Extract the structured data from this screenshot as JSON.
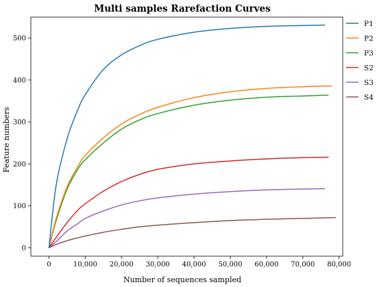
{
  "chart_data": {
    "type": "line",
    "title": "Multi samples Rarefaction Curves",
    "xlabel": "Number of sequences sampled",
    "ylabel": "Feature numbers",
    "xlim": [
      -5000,
      81000
    ],
    "ylim": [
      -20,
      550
    ],
    "x_ticks": [
      0,
      10000,
      20000,
      30000,
      40000,
      50000,
      60000,
      70000,
      80000
    ],
    "x_tick_labels": [
      "0",
      "10,000",
      "20,000",
      "30,000",
      "40,000",
      "50,000",
      "60,000",
      "70,000",
      "80,000"
    ],
    "y_ticks": [
      0,
      100,
      200,
      300,
      400,
      500
    ],
    "y_tick_labels": [
      "0",
      "100",
      "200",
      "300",
      "400",
      "500"
    ],
    "grid": false,
    "legend_position": "outside-right-top",
    "series": [
      {
        "name": "P1",
        "color": "#1f77b4",
        "x": [
          0,
          2000,
          5000,
          8000,
          10000,
          15000,
          20000,
          25000,
          30000,
          40000,
          50000,
          60000,
          70000,
          76000
        ],
        "y": [
          0,
          150,
          260,
          330,
          365,
          425,
          460,
          482,
          497,
          514,
          523,
          528,
          530,
          531
        ]
      },
      {
        "name": "P2",
        "color": "#ff7f0e",
        "x": [
          0,
          2000,
          5000,
          8000,
          10000,
          15000,
          20000,
          25000,
          30000,
          40000,
          50000,
          60000,
          70000,
          78000
        ],
        "y": [
          0,
          70,
          145,
          195,
          220,
          262,
          295,
          318,
          335,
          358,
          372,
          380,
          384,
          386
        ]
      },
      {
        "name": "P3",
        "color": "#2ca02c",
        "x": [
          0,
          2000,
          5000,
          8000,
          10000,
          15000,
          20000,
          25000,
          30000,
          40000,
          50000,
          60000,
          70000,
          77000
        ],
        "y": [
          0,
          65,
          140,
          188,
          210,
          250,
          283,
          305,
          320,
          340,
          352,
          359,
          362,
          364
        ]
      },
      {
        "name": "S2",
        "color": "#d62728",
        "x": [
          0,
          2000,
          5000,
          8000,
          10000,
          15000,
          20000,
          25000,
          30000,
          40000,
          50000,
          60000,
          70000,
          77000
        ],
        "y": [
          0,
          25,
          60,
          90,
          105,
          135,
          158,
          175,
          187,
          200,
          207,
          212,
          215,
          216
        ]
      },
      {
        "name": "S3",
        "color": "#9467bd",
        "x": [
          0,
          2000,
          5000,
          8000,
          10000,
          15000,
          20000,
          25000,
          30000,
          40000,
          50000,
          60000,
          70000,
          76000
        ],
        "y": [
          0,
          15,
          40,
          58,
          70,
          88,
          102,
          112,
          119,
          128,
          134,
          138,
          140,
          141
        ]
      },
      {
        "name": "S4",
        "color": "#8c564b",
        "x": [
          0,
          2000,
          5000,
          8000,
          10000,
          15000,
          20000,
          25000,
          30000,
          40000,
          50000,
          60000,
          70000,
          79000
        ],
        "y": [
          0,
          8,
          17,
          24,
          28,
          37,
          44,
          50,
          54,
          60,
          65,
          68,
          70,
          72
        ]
      }
    ]
  }
}
